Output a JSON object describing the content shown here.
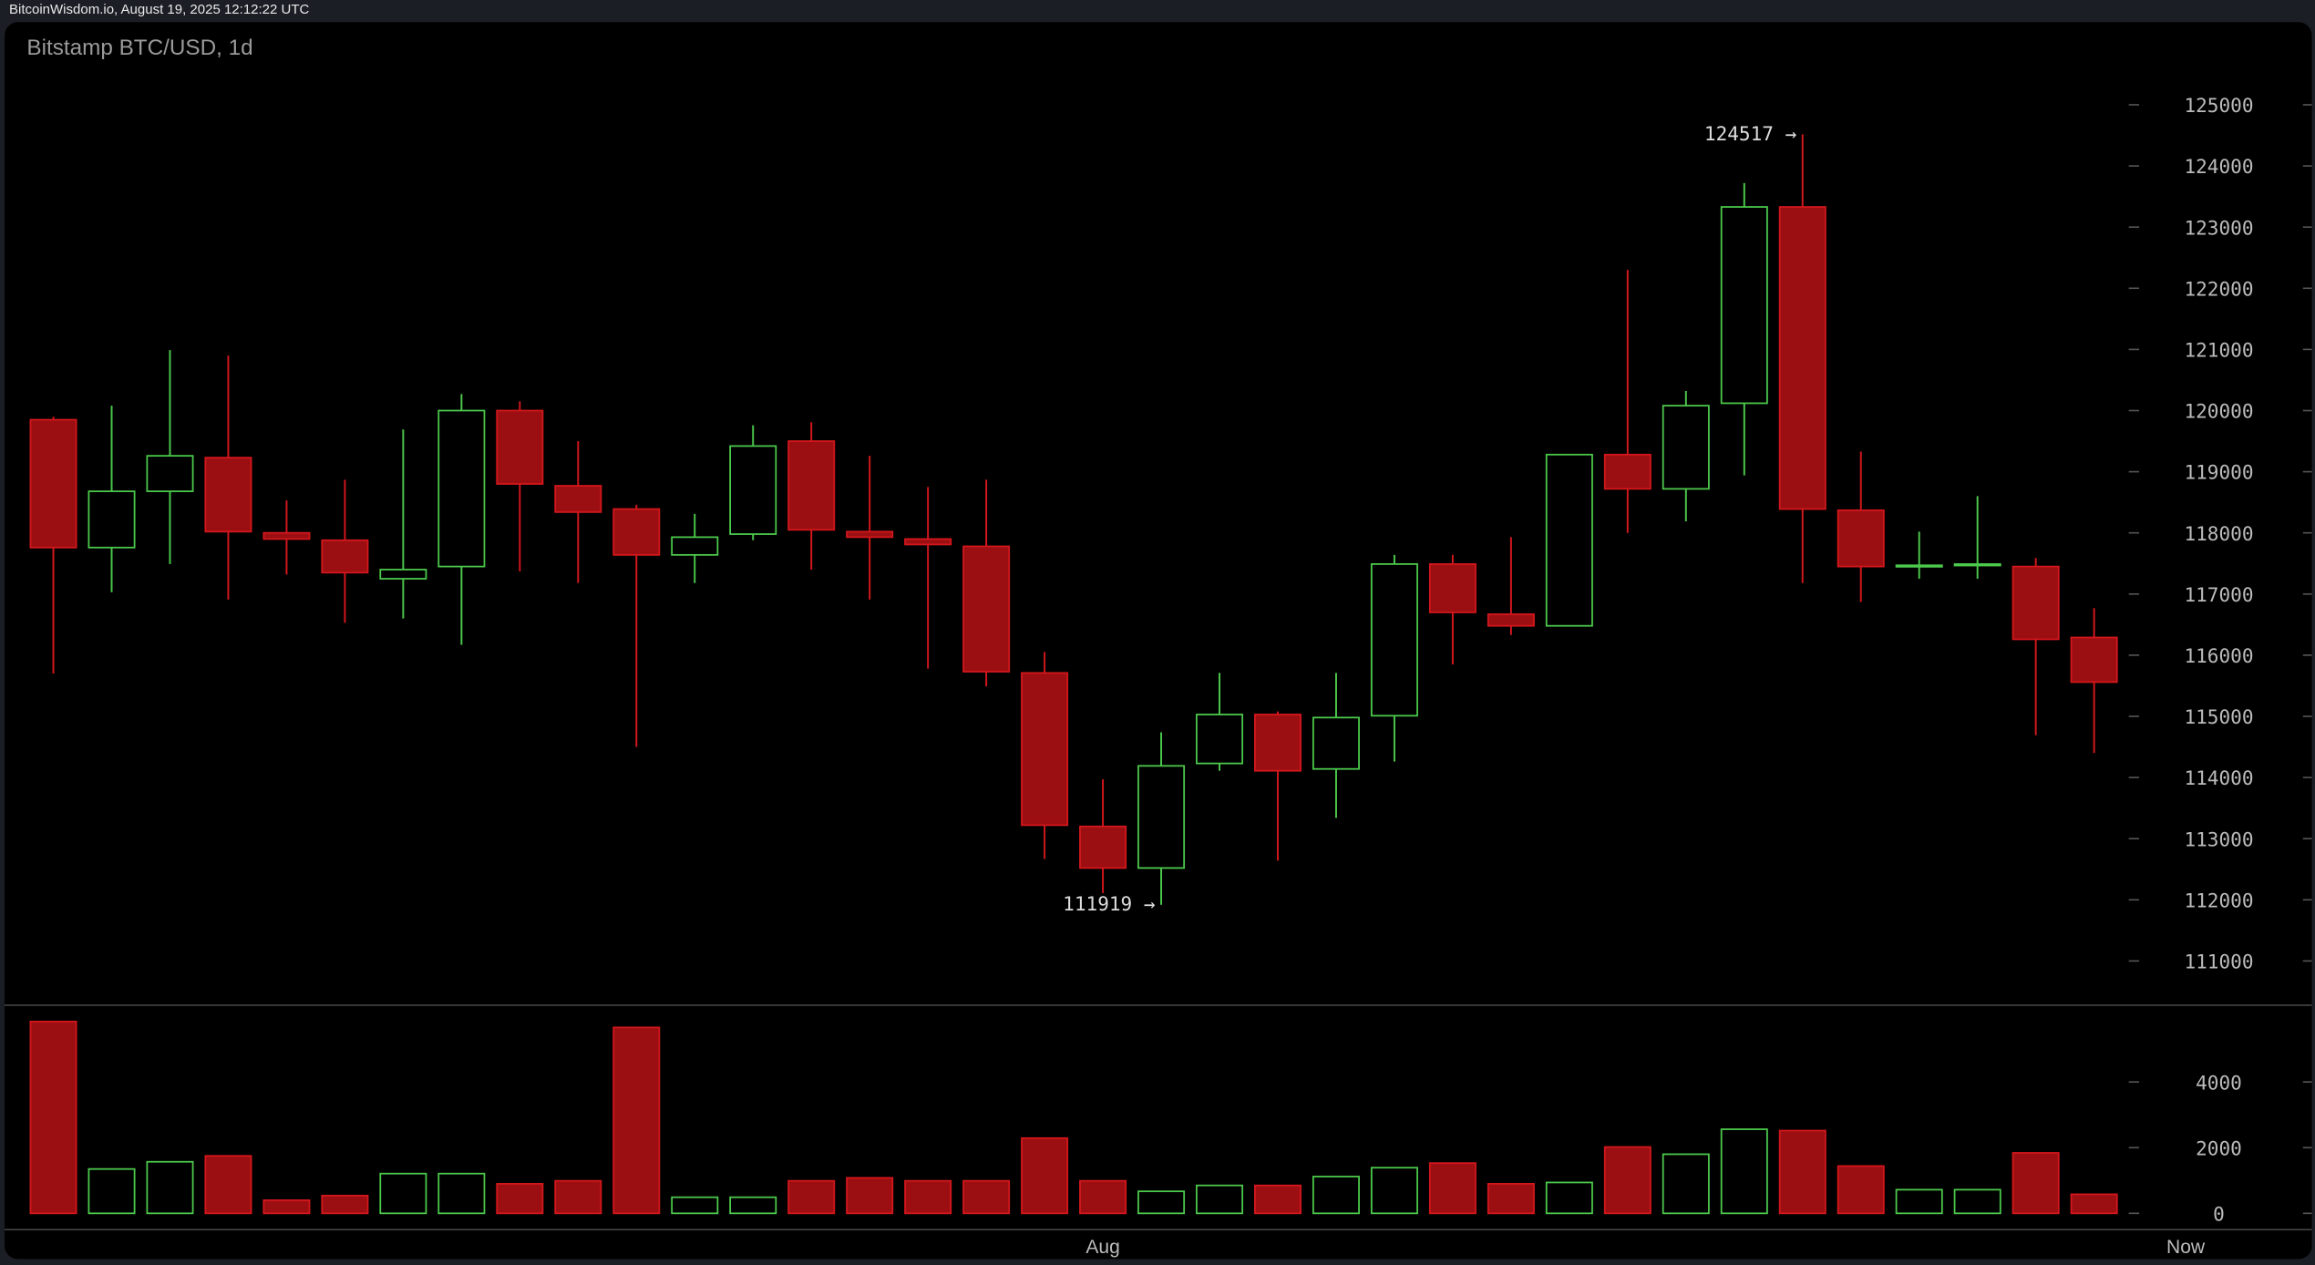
{
  "header": {
    "source_timestamp": "BitcoinWisdom.io, August 19, 2025 12:12:22 UTC"
  },
  "chart_data": {
    "type": "candlestick",
    "title": "Bitstamp BTC/USD, 1d",
    "colors": {
      "up": "#4cc94c",
      "down_fill": "#9b0f12",
      "down_stroke": "#d4171c",
      "axis_text": "#bbbbbb"
    },
    "price_axis": {
      "ylim": [
        110500,
        125500
      ],
      "ticks": [
        125000,
        124000,
        123000,
        122000,
        121000,
        120000,
        119000,
        118000,
        117000,
        116000,
        115000,
        114000,
        113000,
        112000,
        111000
      ]
    },
    "volume_axis": {
      "ylim": [
        0,
        6000
      ],
      "ticks": [
        4000,
        2000,
        0
      ]
    },
    "x_labels": [
      {
        "label": "Aug",
        "index": 18
      },
      {
        "label": "Now",
        "index": 37
      }
    ],
    "annotations": [
      {
        "text": "124517 →",
        "index": 30,
        "price": 124517
      },
      {
        "text": "111919 →",
        "index": 19,
        "price": 111919
      }
    ],
    "candles": [
      {
        "o": 119850,
        "h": 119900,
        "l": 115700,
        "c": 117760,
        "v": 5840
      },
      {
        "o": 117760,
        "h": 120080,
        "l": 117030,
        "c": 118680,
        "v": 1350
      },
      {
        "o": 118680,
        "h": 120990,
        "l": 117490,
        "c": 119260,
        "v": 1570
      },
      {
        "o": 119230,
        "h": 120900,
        "l": 116910,
        "c": 118020,
        "v": 1750
      },
      {
        "o": 118000,
        "h": 118530,
        "l": 117320,
        "c": 117900,
        "v": 400
      },
      {
        "o": 117880,
        "h": 118870,
        "l": 116530,
        "c": 117350,
        "v": 540
      },
      {
        "o": 117250,
        "h": 119690,
        "l": 116600,
        "c": 117400,
        "v": 1210
      },
      {
        "o": 117450,
        "h": 120270,
        "l": 116170,
        "c": 120000,
        "v": 1210
      },
      {
        "o": 120000,
        "h": 120150,
        "l": 117370,
        "c": 118800,
        "v": 900
      },
      {
        "o": 118770,
        "h": 119500,
        "l": 117180,
        "c": 118340,
        "v": 990
      },
      {
        "o": 118390,
        "h": 118460,
        "l": 114500,
        "c": 117640,
        "v": 5660
      },
      {
        "o": 117640,
        "h": 118310,
        "l": 117180,
        "c": 117930,
        "v": 490
      },
      {
        "o": 117980,
        "h": 119760,
        "l": 117880,
        "c": 119420,
        "v": 490
      },
      {
        "o": 119500,
        "h": 119810,
        "l": 117400,
        "c": 118050,
        "v": 990
      },
      {
        "o": 118020,
        "h": 119260,
        "l": 116910,
        "c": 117930,
        "v": 1080
      },
      {
        "o": 117900,
        "h": 118750,
        "l": 115780,
        "c": 117810,
        "v": 990
      },
      {
        "o": 117780,
        "h": 118870,
        "l": 115490,
        "c": 115730,
        "v": 990
      },
      {
        "o": 115710,
        "h": 116050,
        "l": 112670,
        "c": 113220,
        "v": 2290
      },
      {
        "o": 113200,
        "h": 113970,
        "l": 112110,
        "c": 112520,
        "v": 990
      },
      {
        "o": 112520,
        "h": 114740,
        "l": 111919,
        "c": 114190,
        "v": 670
      },
      {
        "o": 114230,
        "h": 115710,
        "l": 114110,
        "c": 115030,
        "v": 850
      },
      {
        "o": 115030,
        "h": 115080,
        "l": 112640,
        "c": 114110,
        "v": 850
      },
      {
        "o": 114140,
        "h": 115710,
        "l": 113340,
        "c": 114980,
        "v": 1120
      },
      {
        "o": 115010,
        "h": 117640,
        "l": 114260,
        "c": 117490,
        "v": 1390
      },
      {
        "o": 117490,
        "h": 117640,
        "l": 115850,
        "c": 116700,
        "v": 1530
      },
      {
        "o": 116670,
        "h": 117930,
        "l": 116330,
        "c": 116480,
        "v": 900
      },
      {
        "o": 116480,
        "h": 119280,
        "l": 116480,
        "c": 119280,
        "v": 940
      },
      {
        "o": 119280,
        "h": 122300,
        "l": 118000,
        "c": 118720,
        "v": 2020
      },
      {
        "o": 118720,
        "h": 120320,
        "l": 118190,
        "c": 120080,
        "v": 1800
      },
      {
        "o": 120120,
        "h": 123720,
        "l": 118940,
        "c": 123330,
        "v": 2560
      },
      {
        "o": 123330,
        "h": 124517,
        "l": 117180,
        "c": 118390,
        "v": 2520
      },
      {
        "o": 118370,
        "h": 119330,
        "l": 116870,
        "c": 117450,
        "v": 1440
      },
      {
        "o": 117450,
        "h": 118020,
        "l": 117250,
        "c": 117470,
        "v": 720
      },
      {
        "o": 117470,
        "h": 118600,
        "l": 117250,
        "c": 117490,
        "v": 720
      },
      {
        "o": 117450,
        "h": 117590,
        "l": 114690,
        "c": 116260,
        "v": 1840
      },
      {
        "o": 116290,
        "h": 116770,
        "l": 114400,
        "c": 115560,
        "v": 580
      }
    ]
  }
}
